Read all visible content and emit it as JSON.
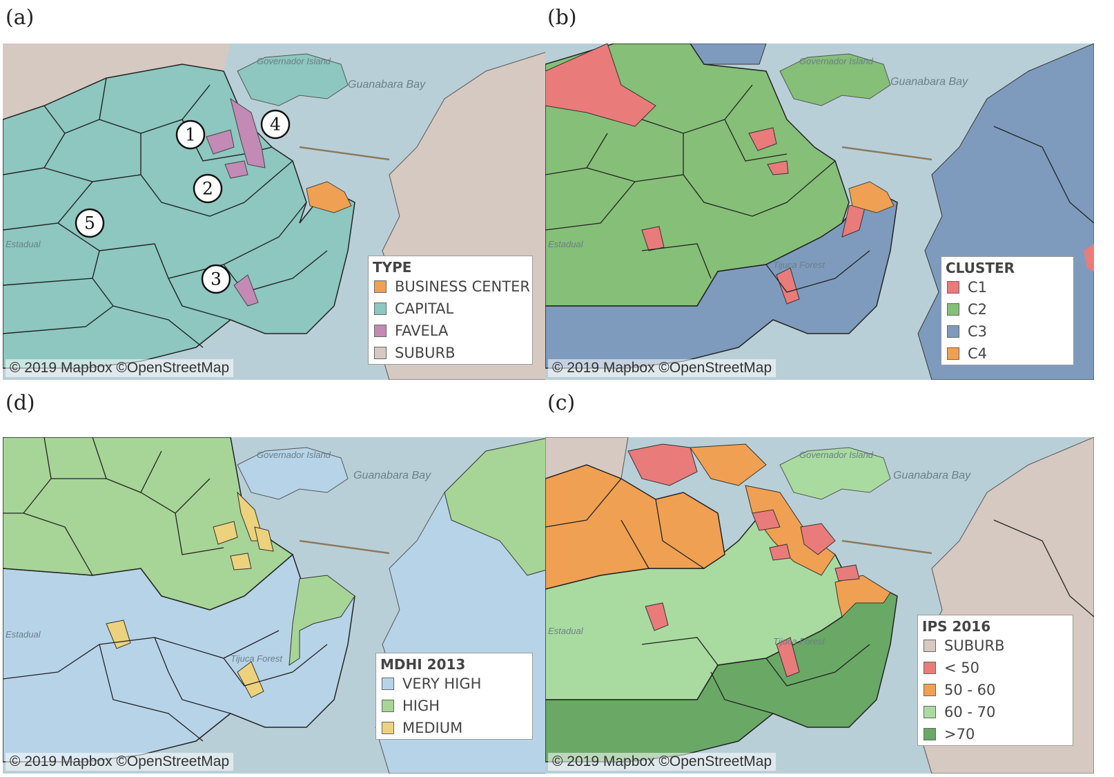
{
  "panels": {
    "a": {
      "label": "(a)",
      "credit": "© 2019 Mapbox ©OpenStreetMap",
      "legend": {
        "title": "TYPE",
        "items": [
          {
            "label": "BUSINESS CENTER",
            "color": "#f0a052"
          },
          {
            "label": "CAPITAL",
            "color": "#8dc7bf"
          },
          {
            "label": "FAVELA",
            "color": "#c28ab5"
          },
          {
            "label": "SUBURB",
            "color": "#d6c9c1"
          }
        ]
      },
      "markers": [
        "1",
        "2",
        "3",
        "4",
        "5"
      ],
      "places": [
        "Governador Island",
        "Guanabara Bay",
        "Estadual"
      ]
    },
    "b": {
      "label": "(b)",
      "credit": "© 2019 Mapbox ©OpenStreetMap",
      "legend": {
        "title": "CLUSTER",
        "items": [
          {
            "label": "C1",
            "color": "#e97b7b"
          },
          {
            "label": "C2",
            "color": "#86bf78"
          },
          {
            "label": "C3",
            "color": "#7e9bbd"
          },
          {
            "label": "C4",
            "color": "#f0a052"
          }
        ]
      },
      "places": [
        "Governador Island",
        "Guanabara Bay",
        "Estadual",
        "Tijuca Forest"
      ]
    },
    "d": {
      "label": "(d)",
      "credit": "© 2019 Mapbox ©OpenStreetMap",
      "legend": {
        "title": "MDHI 2013",
        "items": [
          {
            "label": "VERY HIGH",
            "color": "#b7d3e8"
          },
          {
            "label": "HIGH",
            "color": "#a7d497"
          },
          {
            "label": "MEDIUM",
            "color": "#ecd27d"
          }
        ]
      },
      "places": [
        "Governador Island",
        "Guanabara Bay",
        "Estadual",
        "Tijuca Forest"
      ]
    },
    "c": {
      "label": "(c)",
      "credit": "© 2019 Mapbox ©OpenStreetMap",
      "legend": {
        "title": "IPS 2016",
        "items": [
          {
            "label": "SUBURB",
            "color": "#d6c9c1"
          },
          {
            "label": "< 50",
            "color": "#e97b7b"
          },
          {
            "label": "50 - 60",
            "color": "#f0a052"
          },
          {
            "label": "60 - 70",
            "color": "#a9dba0"
          },
          {
            "label": ">70",
            "color": "#6aa866"
          }
        ]
      },
      "places": [
        "Governador Island",
        "Guanabara Bay",
        "Estadual",
        "Tijuca Forest"
      ]
    }
  }
}
